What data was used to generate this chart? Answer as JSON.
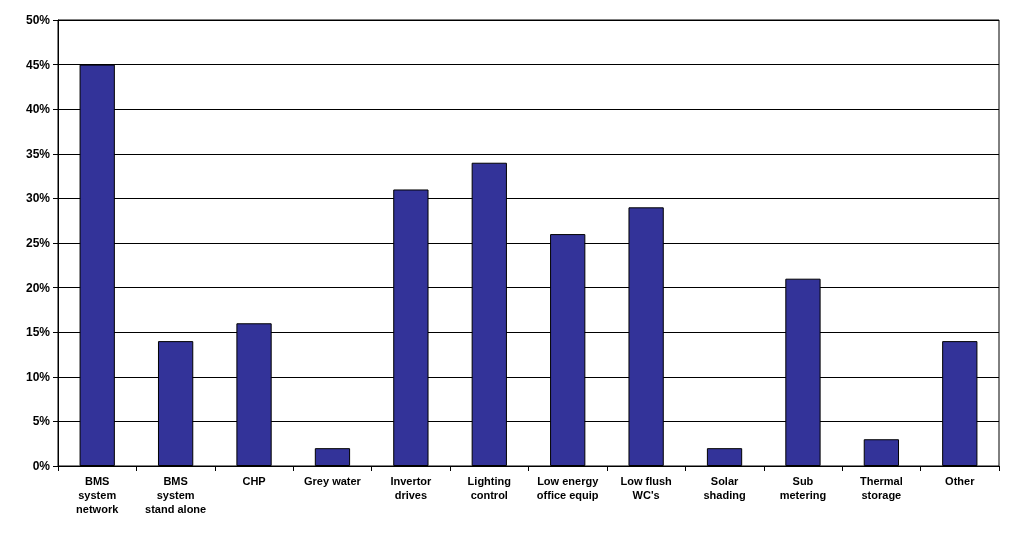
{
  "chart_data": {
    "type": "bar",
    "categories": [
      "BMS\nsystem\nnetwork",
      "BMS\nsystem\nstand alone",
      "CHP",
      "Grey water",
      "Invertor\ndrives",
      "Lighting\ncontrol",
      "Low energy\noffice equip",
      "Low flush\nWC's",
      "Solar\nshading",
      "Sub\nmetering",
      "Thermal\nstorage",
      "Other"
    ],
    "values": [
      45,
      14,
      16,
      2,
      31,
      34,
      26,
      29,
      2,
      21,
      3,
      14
    ],
    "color": "#333399",
    "ylim": [
      0,
      50
    ],
    "yticks": [
      {
        "value": 0,
        "label": "0%"
      },
      {
        "value": 5,
        "label": "5%"
      },
      {
        "value": 10,
        "label": "10%"
      },
      {
        "value": 15,
        "label": "15%"
      },
      {
        "value": 20,
        "label": "20%"
      },
      {
        "value": 25,
        "label": "25%"
      },
      {
        "value": 30,
        "label": "30%"
      },
      {
        "value": 35,
        "label": "35%"
      },
      {
        "value": 40,
        "label": "40%"
      },
      {
        "value": 45,
        "label": "45%"
      },
      {
        "value": 50,
        "label": "50%"
      }
    ],
    "grid": "y"
  }
}
